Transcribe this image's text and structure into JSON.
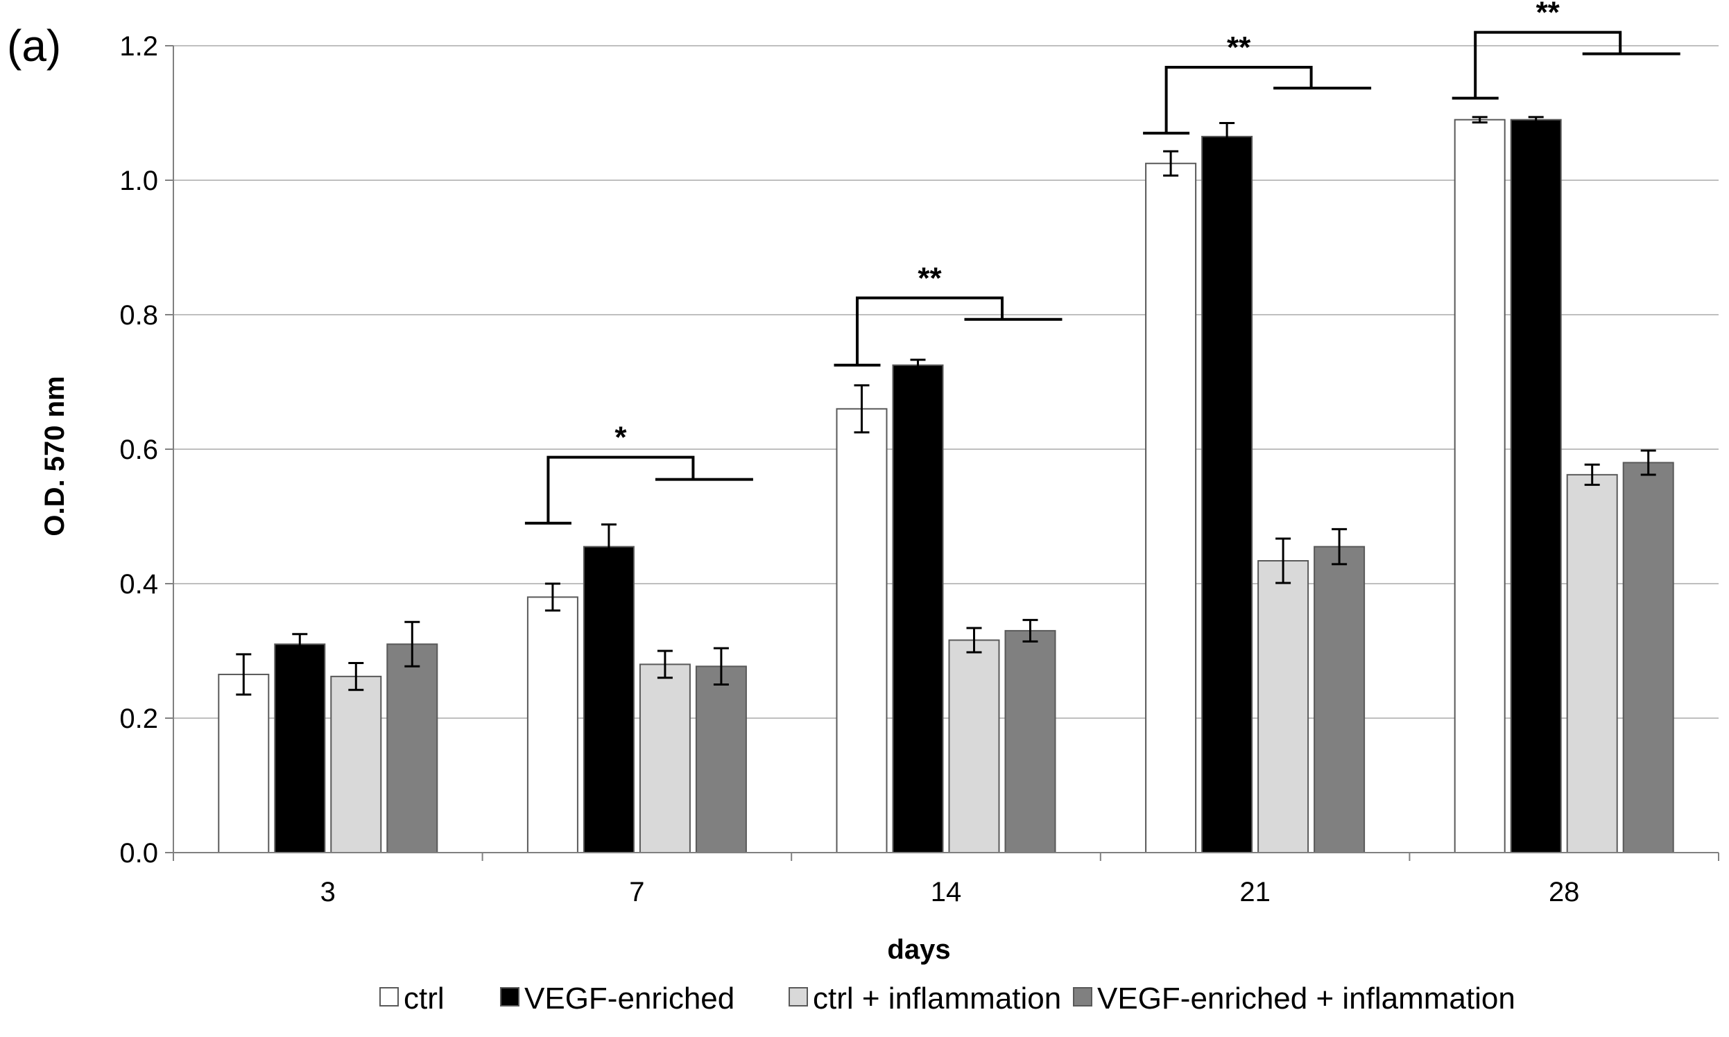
{
  "chart_data": {
    "type": "bar",
    "panel_label": "(a)",
    "title": "",
    "xlabel": "days",
    "ylabel": "O.D. 570 nm",
    "categories": [
      "3",
      "7",
      "14",
      "21",
      "28"
    ],
    "ylim": [
      0,
      1.2
    ],
    "yticks": [
      "0.0",
      "0.2",
      "0.4",
      "0.6",
      "0.8",
      "1.0",
      "1.2"
    ],
    "grid": true,
    "legend_position": "bottom",
    "series": [
      {
        "name": "ctrl",
        "color": "#ffffff",
        "values": [
          0.265,
          0.38,
          0.66,
          1.025,
          1.09
        ],
        "errors": [
          0.03,
          0.02,
          0.035,
          0.018,
          0.004
        ]
      },
      {
        "name": "VEGF-enriched",
        "color": "#000000",
        "values": [
          0.31,
          0.455,
          0.725,
          1.065,
          1.09
        ],
        "errors": [
          0.015,
          0.033,
          0.008,
          0.02,
          0.004
        ]
      },
      {
        "name": "ctrl + inflammation",
        "color": "#d9d9d9",
        "values": [
          0.262,
          0.28,
          0.316,
          0.434,
          0.562
        ],
        "errors": [
          0.02,
          0.02,
          0.018,
          0.033,
          0.015
        ]
      },
      {
        "name": "VEGF-enriched + inflammation",
        "color": "#808080",
        "values": [
          0.31,
          0.277,
          0.33,
          0.455,
          0.58
        ],
        "errors": [
          0.033,
          0.027,
          0.016,
          0.026,
          0.018
        ]
      }
    ],
    "significance": [
      {
        "category": "7",
        "label": "*",
        "left_y": 0.49,
        "right_y": 0.555,
        "top_y": 0.588
      },
      {
        "category": "14",
        "label": "**",
        "left_y": 0.725,
        "right_y": 0.793,
        "top_y": 0.825
      },
      {
        "category": "21",
        "label": "**",
        "left_y": 1.07,
        "right_y": 1.137,
        "top_y": 1.168
      },
      {
        "category": "28",
        "label": "**",
        "left_y": 1.122,
        "right_y": 1.188,
        "top_y": 1.22
      }
    ]
  }
}
